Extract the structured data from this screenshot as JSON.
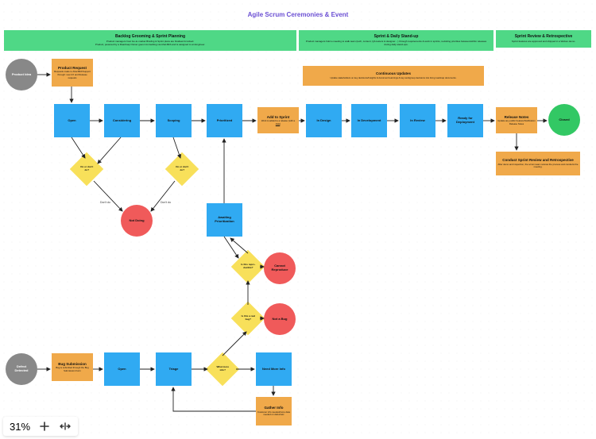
{
  "page": {
    "title": "Agile Scrum Ceremonies & Event"
  },
  "headers": {
    "left": {
      "title": "Backlog Grooming & Sprint Planning",
      "sub": "Product managers host Go-to-market Briefing & Sprint plans are finalised & locked.<br>Product, powered by a Roadmap Owner goes into backlog via Aha/JIRA and is assigned to an Engineer."
    },
    "mid": {
      "title": "Sprint & Daily Stand-up",
      "sub": "Product managers hold a meeting to walk team (tech, content, QA testers & designer…) through requirements & work in sprints, revisiting priorities between/within releases during daily stand-ups."
    },
    "right": {
      "title": "Sprint Review & Retrospective",
      "sub": "Sprint features are approved and shipped in a Webex demo."
    }
  },
  "updates": {
    "title": "Continuous Updates",
    "sub": "Update stakeholders on key decisions/Insights & document learnings & key workgroup decisions into living roadmap documents."
  },
  "nodes": {
    "productIdea": "Product Idea",
    "defectDetected": "Defect<br>Detected",
    "productRequest": {
      "t": "Product Request",
      "s": "Requests made to Aha/JIRA/Support through: new UX and Release requests"
    },
    "bugSubmission": {
      "t": "Bug Submission",
      "s": "Bug is submitted through the Bug Submission Form"
    },
    "open": "Open",
    "considering": "Considering",
    "scoping": "Scoping",
    "prioritized": "Prioritized",
    "addToSprint": {
      "t": "Add to Sprint",
      "s": "Work is added to a release (with a <u>date</u>)"
    },
    "inDesign": "In Design",
    "inDevelopment": "In Development",
    "inReview": "In Review",
    "readyForDeployment": "Ready for<br>Deployment",
    "releaseNotes": {
      "t": "Release Notes",
      "s": "Update any public Feature/Notification Release Notes"
    },
    "closed": "Closed",
    "conductReview": {
      "t": "Conduct Sprint Review and Retrospective",
      "s": "After demo and inspection, the scrum team reviews the process and conducts the meeting."
    },
    "open2": "Open",
    "triage": "Triage",
    "notDoing": "Not Doing",
    "awaitingPrioritization": "Awaiting<br>Prioritization",
    "cannotReproduce": "Cannot<br>Reproduce",
    "notABug": "Not a Bug",
    "needMoreInfo": "Need More Info",
    "gatherInfo": {
      "t": "Gather Info",
      "s": "Customer info needed/more data needed on defect/etc"
    },
    "d1": "Do or don't<br>do?",
    "d2": "Do or don't<br>do?",
    "d3": "Is this repro-<br>ducible?",
    "d4": "Is this a real<br>bug?",
    "d5": "What more<br>info?"
  },
  "edgeLabels": {
    "dontDo1": "Don't do",
    "dontDo2": "Don't do"
  },
  "zoom": {
    "level": "31%"
  },
  "colors": {
    "blue": "#30aaf2",
    "orange": "#f0a94a",
    "green": "#4fd886",
    "greenCircle": "#32c864",
    "red": "#f05a5a",
    "yellow": "#f8e05a",
    "gray": "#888888",
    "purple": "#6b4fd3"
  }
}
